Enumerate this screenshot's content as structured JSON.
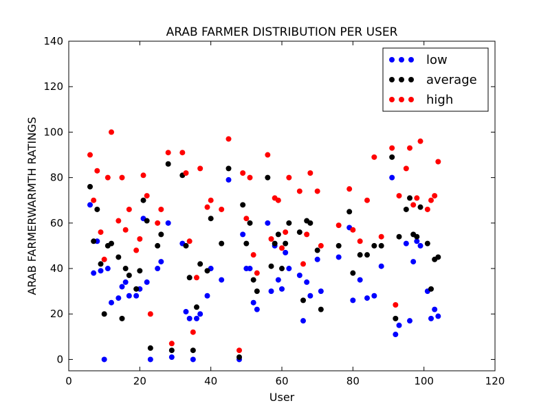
{
  "chart_data": {
    "type": "scatter",
    "title": "ARAB FARMER DISTRIBUTION PER USER",
    "xlabel": "User",
    "ylabel": "ARAB FARMERWARMTH RATINGS",
    "xlim": [
      0,
      120
    ],
    "ylim": [
      -5,
      140
    ],
    "xticks": [
      0,
      20,
      40,
      60,
      80,
      100,
      120
    ],
    "yticks": [
      0,
      20,
      40,
      60,
      80,
      100,
      120,
      140
    ],
    "grid": false,
    "legend_position": "top-right",
    "series": [
      {
        "name": "low",
        "color": "#0000ff",
        "points": [
          [
            6,
            68
          ],
          [
            7,
            38
          ],
          [
            8,
            52
          ],
          [
            9,
            39
          ],
          [
            10,
            0
          ],
          [
            11,
            40
          ],
          [
            12,
            25
          ],
          [
            14,
            27
          ],
          [
            15,
            32
          ],
          [
            16,
            34
          ],
          [
            17,
            28
          ],
          [
            19,
            28
          ],
          [
            20,
            31
          ],
          [
            21,
            62
          ],
          [
            22,
            34
          ],
          [
            23,
            0
          ],
          [
            25,
            40
          ],
          [
            26,
            43
          ],
          [
            28,
            60
          ],
          [
            29,
            1
          ],
          [
            32,
            51
          ],
          [
            33,
            21
          ],
          [
            34,
            18
          ],
          [
            35,
            0
          ],
          [
            36,
            18
          ],
          [
            37,
            20
          ],
          [
            39,
            28
          ],
          [
            40,
            40
          ],
          [
            43,
            35
          ],
          [
            45,
            79
          ],
          [
            48,
            0
          ],
          [
            49,
            55
          ],
          [
            50,
            40
          ],
          [
            51,
            40
          ],
          [
            52,
            25
          ],
          [
            53,
            22
          ],
          [
            56,
            60
          ],
          [
            57,
            30
          ],
          [
            58,
            50
          ],
          [
            59,
            35
          ],
          [
            60,
            31
          ],
          [
            61,
            47
          ],
          [
            62,
            40
          ],
          [
            65,
            37
          ],
          [
            66,
            17
          ],
          [
            67,
            34
          ],
          [
            68,
            28
          ],
          [
            70,
            44
          ],
          [
            71,
            30
          ],
          [
            76,
            45
          ],
          [
            79,
            58
          ],
          [
            80,
            26
          ],
          [
            82,
            35
          ],
          [
            84,
            27
          ],
          [
            86,
            28
          ],
          [
            88,
            41
          ],
          [
            91,
            80
          ],
          [
            92,
            11
          ],
          [
            93,
            15
          ],
          [
            95,
            51
          ],
          [
            96,
            17
          ],
          [
            97,
            43
          ],
          [
            98,
            52
          ],
          [
            99,
            50
          ],
          [
            101,
            30
          ],
          [
            102,
            18
          ],
          [
            103,
            22
          ],
          [
            104,
            19
          ]
        ]
      },
      {
        "name": "average",
        "color": "#000000",
        "points": [
          [
            6,
            76
          ],
          [
            7,
            52
          ],
          [
            8,
            66
          ],
          [
            9,
            42
          ],
          [
            10,
            20
          ],
          [
            11,
            50
          ],
          [
            12,
            51
          ],
          [
            14,
            45
          ],
          [
            15,
            18
          ],
          [
            16,
            40
          ],
          [
            17,
            37
          ],
          [
            19,
            31
          ],
          [
            20,
            39
          ],
          [
            21,
            70
          ],
          [
            22,
            61
          ],
          [
            23,
            5
          ],
          [
            25,
            50
          ],
          [
            26,
            55
          ],
          [
            28,
            86
          ],
          [
            29,
            4
          ],
          [
            32,
            81
          ],
          [
            33,
            50
          ],
          [
            34,
            36
          ],
          [
            35,
            4
          ],
          [
            36,
            23
          ],
          [
            37,
            42
          ],
          [
            39,
            39
          ],
          [
            40,
            62
          ],
          [
            43,
            51
          ],
          [
            45,
            84
          ],
          [
            48,
            1
          ],
          [
            49,
            68
          ],
          [
            50,
            51
          ],
          [
            51,
            60
          ],
          [
            52,
            35
          ],
          [
            53,
            30
          ],
          [
            56,
            80
          ],
          [
            57,
            41
          ],
          [
            58,
            51
          ],
          [
            59,
            55
          ],
          [
            60,
            40
          ],
          [
            61,
            51
          ],
          [
            62,
            60
          ],
          [
            65,
            56
          ],
          [
            66,
            26
          ],
          [
            67,
            61
          ],
          [
            68,
            60
          ],
          [
            70,
            48
          ],
          [
            71,
            22
          ],
          [
            76,
            50
          ],
          [
            79,
            65
          ],
          [
            80,
            38
          ],
          [
            82,
            46
          ],
          [
            84,
            46
          ],
          [
            86,
            50
          ],
          [
            88,
            50
          ],
          [
            91,
            89
          ],
          [
            92,
            18
          ],
          [
            93,
            54
          ],
          [
            95,
            66
          ],
          [
            96,
            71
          ],
          [
            97,
            55
          ],
          [
            98,
            54
          ],
          [
            99,
            67
          ],
          [
            101,
            51
          ],
          [
            102,
            31
          ],
          [
            103,
            44
          ],
          [
            104,
            45
          ]
        ]
      },
      {
        "name": "high",
        "color": "#ff0000",
        "points": [
          [
            6,
            90
          ],
          [
            7,
            70
          ],
          [
            8,
            83
          ],
          [
            9,
            56
          ],
          [
            10,
            44
          ],
          [
            11,
            80
          ],
          [
            12,
            100
          ],
          [
            14,
            61
          ],
          [
            15,
            80
          ],
          [
            16,
            57
          ],
          [
            17,
            66
          ],
          [
            19,
            48
          ],
          [
            20,
            53
          ],
          [
            21,
            81
          ],
          [
            22,
            72
          ],
          [
            23,
            20
          ],
          [
            25,
            60
          ],
          [
            26,
            66
          ],
          [
            28,
            91
          ],
          [
            29,
            7
          ],
          [
            32,
            91
          ],
          [
            33,
            82
          ],
          [
            34,
            52
          ],
          [
            35,
            12
          ],
          [
            36,
            36
          ],
          [
            37,
            84
          ],
          [
            39,
            67
          ],
          [
            40,
            70
          ],
          [
            43,
            66
          ],
          [
            45,
            97
          ],
          [
            48,
            4
          ],
          [
            49,
            82
          ],
          [
            50,
            62
          ],
          [
            51,
            80
          ],
          [
            52,
            46
          ],
          [
            53,
            38
          ],
          [
            56,
            90
          ],
          [
            57,
            53
          ],
          [
            58,
            71
          ],
          [
            59,
            70
          ],
          [
            60,
            49
          ],
          [
            61,
            56
          ],
          [
            62,
            80
          ],
          [
            65,
            74
          ],
          [
            66,
            42
          ],
          [
            67,
            55
          ],
          [
            68,
            82
          ],
          [
            70,
            74
          ],
          [
            71,
            50
          ],
          [
            76,
            59
          ],
          [
            79,
            75
          ],
          [
            80,
            57
          ],
          [
            82,
            52
          ],
          [
            84,
            70
          ],
          [
            86,
            89
          ],
          [
            88,
            54
          ],
          [
            91,
            93
          ],
          [
            92,
            24
          ],
          [
            93,
            72
          ],
          [
            95,
            84
          ],
          [
            96,
            93
          ],
          [
            97,
            68
          ],
          [
            98,
            71
          ],
          [
            99,
            96
          ],
          [
            101,
            66
          ],
          [
            102,
            70
          ],
          [
            103,
            72
          ],
          [
            104,
            87
          ]
        ]
      }
    ]
  }
}
